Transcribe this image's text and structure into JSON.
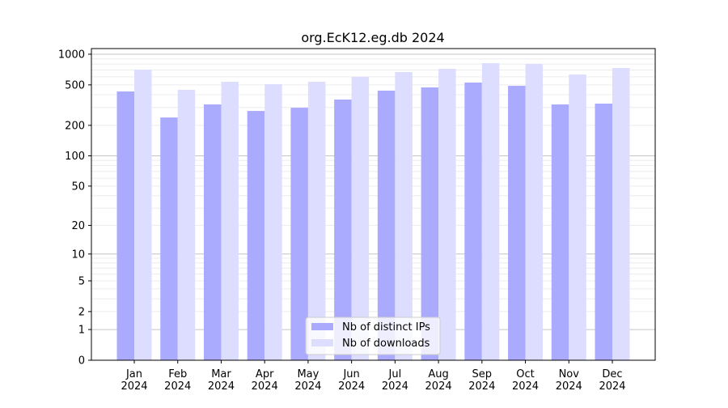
{
  "chart_data": {
    "type": "bar",
    "title": "org.EcK12.eg.db 2024",
    "xlabel": "",
    "ylabel": "",
    "yscale": "log(y+1)",
    "ylim": [
      0,
      1136
    ],
    "yticks": [
      0,
      1,
      2,
      5,
      10,
      20,
      50,
      100,
      200,
      500,
      1000
    ],
    "grid": true,
    "legend_position": "bottom-center",
    "categories": [
      "Jan\n2024",
      "Feb\n2024",
      "Mar\n2024",
      "Apr\n2024",
      "May\n2024",
      "Jun\n2024",
      "Jul\n2024",
      "Aug\n2024",
      "Sep\n2024",
      "Oct\n2024",
      "Nov\n2024",
      "Dec\n2024"
    ],
    "series": [
      {
        "name": "Nb of distinct IPs",
        "color": "#aaaaff",
        "values": [
          431,
          239,
          321,
          277,
          298,
          359,
          439,
          472,
          527,
          489,
          321,
          327
        ]
      },
      {
        "name": "Nb of downloads",
        "color": "#ddddff",
        "values": [
          706,
          447,
          536,
          508,
          536,
          599,
          668,
          719,
          818,
          803,
          633,
          732
        ]
      }
    ]
  }
}
